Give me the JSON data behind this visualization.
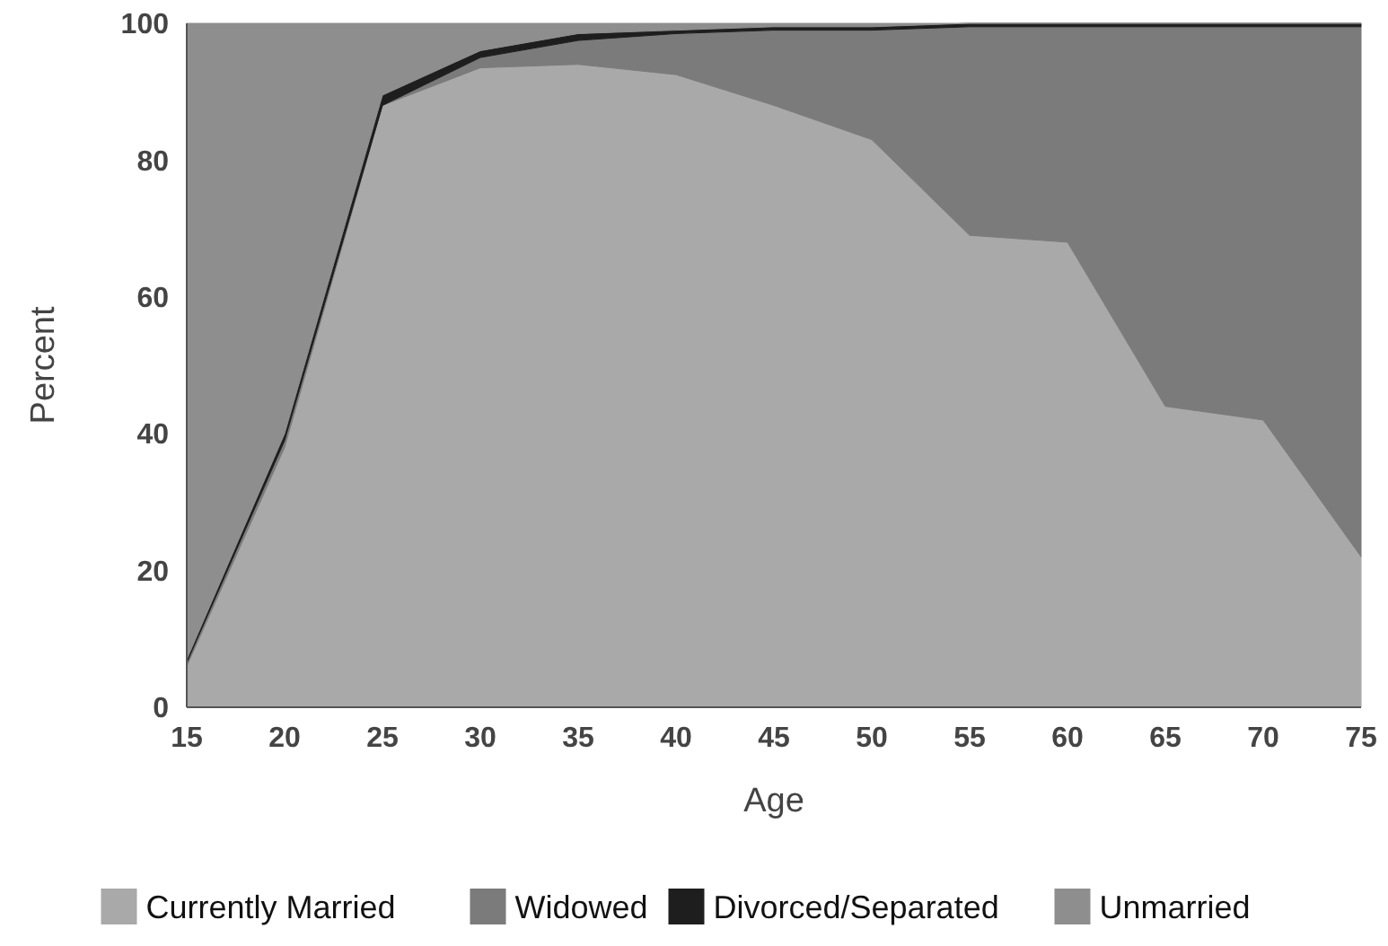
{
  "chart_data": {
    "type": "area",
    "stacked": true,
    "xlabel": "Age",
    "ylabel": "Percent",
    "x": [
      15,
      20,
      25,
      30,
      35,
      40,
      45,
      50,
      55,
      60,
      65,
      70,
      75
    ],
    "xlim": [
      15,
      75
    ],
    "xticks": [
      15,
      20,
      25,
      30,
      35,
      40,
      45,
      50,
      55,
      60,
      65,
      70,
      75
    ],
    "ylim": [
      0,
      100
    ],
    "yticks": [
      0,
      20,
      40,
      60,
      80,
      100
    ],
    "legend": "bottom",
    "series": [
      {
        "name": "Currently Married",
        "color": "#a9a9a9",
        "values": [
          6,
          38,
          88,
          93.5,
          94,
          92.5,
          88,
          83,
          69,
          68,
          44,
          42,
          22
        ]
      },
      {
        "name": "Widowed",
        "color": "#7b7b7b",
        "values": [
          0.5,
          1,
          0,
          1.5,
          3.5,
          6,
          11,
          16,
          30.5,
          31.5,
          55.5,
          57.5,
          77.5
        ]
      },
      {
        "name": "Divorced/Separated",
        "color": "#1e1e1e",
        "values": [
          0.5,
          1,
          1.5,
          1,
          1,
          0.5,
          0.5,
          0.5,
          0.5,
          0.5,
          0.5,
          0.5,
          0.5
        ]
      },
      {
        "name": "Unmarried",
        "color": "#8e8e8e",
        "values": [
          93,
          60,
          10.5,
          4,
          1.5,
          1,
          0.5,
          0.5,
          0,
          0,
          0,
          0,
          0
        ]
      }
    ]
  }
}
